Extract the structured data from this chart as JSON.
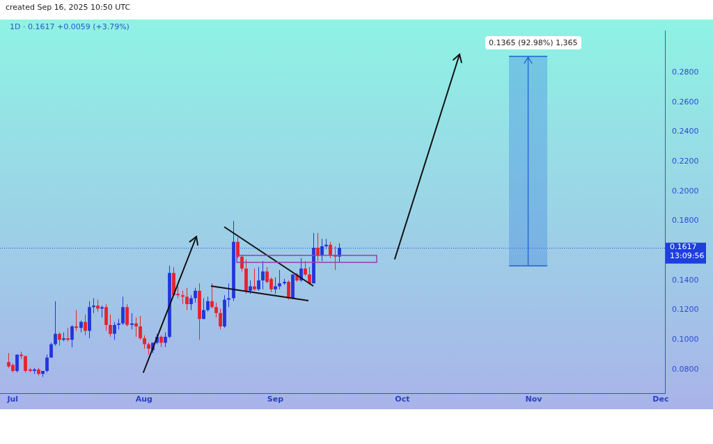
{
  "chart_data": {
    "type": "candlestick",
    "title": "1D · 0.1617 +0.0059 (+3.79%)",
    "annotations": [
      "created Sep 16, 2025 10:50 UTC",
      "0.1365 (92.98%) 1,365"
    ],
    "x": [
      "2025-06-30",
      "2025-07-01",
      "2025-07-02",
      "2025-07-03",
      "2025-07-04",
      "2025-07-05",
      "2025-07-06",
      "2025-07-07",
      "2025-07-08",
      "2025-07-09",
      "2025-07-10",
      "2025-07-11",
      "2025-07-12",
      "2025-07-13",
      "2025-07-14",
      "2025-07-15",
      "2025-07-16",
      "2025-07-17",
      "2025-07-18",
      "2025-07-19",
      "2025-07-20",
      "2025-07-21",
      "2025-07-22",
      "2025-07-23",
      "2025-07-24",
      "2025-07-25",
      "2025-07-26",
      "2025-07-27",
      "2025-07-28",
      "2025-07-29",
      "2025-07-30",
      "2025-07-31",
      "2025-08-01",
      "2025-08-02",
      "2025-08-03",
      "2025-08-04",
      "2025-08-05",
      "2025-08-06",
      "2025-08-07",
      "2025-08-08",
      "2025-08-09",
      "2025-08-10",
      "2025-08-11",
      "2025-08-12",
      "2025-08-13",
      "2025-08-14",
      "2025-08-15",
      "2025-08-16",
      "2025-08-17",
      "2025-08-18",
      "2025-08-19",
      "2025-08-20",
      "2025-08-21",
      "2025-08-22",
      "2025-08-23",
      "2025-08-24",
      "2025-08-25",
      "2025-08-26",
      "2025-08-27",
      "2025-08-28",
      "2025-08-29",
      "2025-08-30",
      "2025-08-31",
      "2025-09-01",
      "2025-09-02",
      "2025-09-03",
      "2025-09-04",
      "2025-09-05",
      "2025-09-06",
      "2025-09-07",
      "2025-09-08",
      "2025-09-09",
      "2025-09-10",
      "2025-09-11",
      "2025-09-12",
      "2025-09-13",
      "2025-09-14",
      "2025-09-15",
      "2025-09-16"
    ],
    "ohlc": [
      [
        0.085,
        0.091,
        0.081,
        0.082
      ],
      [
        0.083,
        0.084,
        0.078,
        0.079
      ],
      [
        0.079,
        0.09,
        0.078,
        0.09
      ],
      [
        0.09,
        0.092,
        0.087,
        0.089
      ],
      [
        0.089,
        0.089,
        0.078,
        0.079
      ],
      [
        0.08,
        0.081,
        0.078,
        0.079
      ],
      [
        0.079,
        0.081,
        0.077,
        0.08
      ],
      [
        0.08,
        0.081,
        0.076,
        0.077
      ],
      [
        0.077,
        0.079,
        0.075,
        0.079
      ],
      [
        0.079,
        0.09,
        0.078,
        0.088
      ],
      [
        0.088,
        0.098,
        0.088,
        0.097
      ],
      [
        0.097,
        0.126,
        0.096,
        0.104
      ],
      [
        0.104,
        0.105,
        0.096,
        0.1
      ],
      [
        0.1,
        0.105,
        0.099,
        0.101
      ],
      [
        0.101,
        0.108,
        0.099,
        0.1
      ],
      [
        0.1,
        0.11,
        0.095,
        0.109
      ],
      [
        0.109,
        0.12,
        0.106,
        0.108
      ],
      [
        0.108,
        0.113,
        0.105,
        0.112
      ],
      [
        0.112,
        0.117,
        0.103,
        0.106
      ],
      [
        0.106,
        0.126,
        0.101,
        0.122
      ],
      [
        0.122,
        0.128,
        0.118,
        0.123
      ],
      [
        0.123,
        0.127,
        0.119,
        0.121
      ],
      [
        0.121,
        0.123,
        0.115,
        0.122
      ],
      [
        0.122,
        0.124,
        0.106,
        0.11
      ],
      [
        0.11,
        0.117,
        0.102,
        0.104
      ],
      [
        0.104,
        0.112,
        0.1,
        0.11
      ],
      [
        0.11,
        0.114,
        0.107,
        0.111
      ],
      [
        0.111,
        0.129,
        0.11,
        0.122
      ],
      [
        0.122,
        0.124,
        0.109,
        0.11
      ],
      [
        0.11,
        0.118,
        0.107,
        0.111
      ],
      [
        0.111,
        0.115,
        0.102,
        0.109
      ],
      [
        0.109,
        0.116,
        0.1,
        0.101
      ],
      [
        0.101,
        0.103,
        0.094,
        0.097
      ],
      [
        0.097,
        0.098,
        0.09,
        0.094
      ],
      [
        0.093,
        0.098,
        0.091,
        0.098
      ],
      [
        0.098,
        0.104,
        0.097,
        0.102
      ],
      [
        0.102,
        0.103,
        0.095,
        0.098
      ],
      [
        0.098,
        0.105,
        0.095,
        0.102
      ],
      [
        0.102,
        0.15,
        0.101,
        0.145
      ],
      [
        0.145,
        0.149,
        0.13,
        0.13
      ],
      [
        0.131,
        0.136,
        0.128,
        0.13
      ],
      [
        0.13,
        0.133,
        0.124,
        0.129
      ],
      [
        0.129,
        0.135,
        0.12,
        0.124
      ],
      [
        0.124,
        0.13,
        0.12,
        0.128
      ],
      [
        0.128,
        0.135,
        0.125,
        0.133
      ],
      [
        0.133,
        0.138,
        0.1,
        0.114
      ],
      [
        0.114,
        0.128,
        0.114,
        0.12
      ],
      [
        0.12,
        0.129,
        0.119,
        0.126
      ],
      [
        0.126,
        0.138,
        0.121,
        0.122
      ],
      [
        0.122,
        0.125,
        0.115,
        0.118
      ],
      [
        0.118,
        0.121,
        0.107,
        0.109
      ],
      [
        0.109,
        0.13,
        0.108,
        0.127
      ],
      [
        0.127,
        0.138,
        0.122,
        0.128
      ],
      [
        0.128,
        0.18,
        0.126,
        0.166
      ],
      [
        0.166,
        0.169,
        0.155,
        0.156
      ],
      [
        0.156,
        0.157,
        0.146,
        0.148
      ],
      [
        0.148,
        0.154,
        0.131,
        0.133
      ],
      [
        0.133,
        0.14,
        0.131,
        0.136
      ],
      [
        0.136,
        0.148,
        0.133,
        0.134
      ],
      [
        0.134,
        0.149,
        0.133,
        0.14
      ],
      [
        0.14,
        0.153,
        0.134,
        0.146
      ],
      [
        0.146,
        0.149,
        0.138,
        0.139
      ],
      [
        0.141,
        0.142,
        0.132,
        0.134
      ],
      [
        0.134,
        0.142,
        0.131,
        0.136
      ],
      [
        0.136,
        0.147,
        0.134,
        0.138
      ],
      [
        0.138,
        0.141,
        0.137,
        0.139
      ],
      [
        0.139,
        0.14,
        0.127,
        0.128
      ],
      [
        0.128,
        0.144,
        0.128,
        0.144
      ],
      [
        0.144,
        0.145,
        0.139,
        0.14
      ],
      [
        0.14,
        0.155,
        0.139,
        0.148
      ],
      [
        0.148,
        0.153,
        0.143,
        0.144
      ],
      [
        0.144,
        0.149,
        0.137,
        0.138
      ],
      [
        0.138,
        0.172,
        0.138,
        0.162
      ],
      [
        0.162,
        0.172,
        0.153,
        0.157
      ],
      [
        0.157,
        0.168,
        0.153,
        0.163
      ],
      [
        0.163,
        0.168,
        0.161,
        0.164
      ],
      [
        0.164,
        0.166,
        0.155,
        0.157
      ],
      [
        0.157,
        0.163,
        0.147,
        0.156
      ],
      [
        0.156,
        0.165,
        0.152,
        0.162
      ]
    ],
    "colors": [
      "#e8222e",
      "#e8222e",
      "#2236d8",
      "#e8222e",
      "#e8222e",
      "#e8222e",
      "#2236d8",
      "#e8222e",
      "#2236d8",
      "#2236d8",
      "#2236d8",
      "#2236d8",
      "#e8222e",
      "#2236d8",
      "#e8222e",
      "#2236d8",
      "#e8222e",
      "#2236d8",
      "#e8222e",
      "#2236d8",
      "#2236d8",
      "#e8222e",
      "#2236d8",
      "#e8222e",
      "#e8222e",
      "#2236d8",
      "#2236d8",
      "#2236d8",
      "#e8222e",
      "#2236d8",
      "#e8222e",
      "#e8222e",
      "#e8222e",
      "#e8222e",
      "#2236d8",
      "#2236d8",
      "#e8222e",
      "#2236d8",
      "#2236d8",
      "#e8222e",
      "#e8222e",
      "#e8222e",
      "#e8222e",
      "#2236d8",
      "#2236d8",
      "#e8222e",
      "#2236d8",
      "#2236d8",
      "#e8222e",
      "#e8222e",
      "#e8222e",
      "#2236d8",
      "#2236d8",
      "#2236d8",
      "#e8222e",
      "#e8222e",
      "#e8222e",
      "#2236d8",
      "#e8222e",
      "#2236d8",
      "#2236d8",
      "#e8222e",
      "#e8222e",
      "#2236d8",
      "#2236d8",
      "#2236d8",
      "#e8222e",
      "#2236d8",
      "#e8222e",
      "#2236d8",
      "#e8222e",
      "#e8222e",
      "#2236d8",
      "#e8222e",
      "#2236d8",
      "#2236d8",
      "#e8222e",
      "#e8222e",
      "#2236d8"
    ],
    "xlim": [
      "2025-06-28",
      "2025-12-02"
    ],
    "xticks": [
      {
        "value": "2025-07-01",
        "label": "Jul"
      },
      {
        "value": "2025-08-01",
        "label": "Aug"
      },
      {
        "value": "2025-09-01",
        "label": "Sep"
      },
      {
        "value": "2025-10-01",
        "label": "Oct"
      },
      {
        "value": "2025-11-01",
        "label": "Nov"
      },
      {
        "value": "2025-12-01",
        "label": "Dec"
      }
    ],
    "ylim": [
      0.064,
      0.308
    ],
    "yticks": [
      {
        "value": 0.08,
        "label": "0.0800"
      },
      {
        "value": 0.1,
        "label": "0.1000"
      },
      {
        "value": 0.12,
        "label": "0.1200"
      },
      {
        "value": 0.14,
        "label": "0.1400"
      },
      {
        "value": 0.18,
        "label": "0.1800"
      },
      {
        "value": 0.2,
        "label": "0.2000"
      },
      {
        "value": 0.22,
        "label": "0.2200"
      },
      {
        "value": 0.24,
        "label": "0.2400"
      },
      {
        "value": 0.26,
        "label": "0.2600"
      },
      {
        "value": 0.28,
        "label": "0.2800"
      }
    ],
    "ref_lines": [
      {
        "axis": "y",
        "value": 0.1617,
        "label": "0.1617\n13:09:56",
        "color": "#1d3fe0",
        "line_style": "dotted"
      }
    ]
  }
}
